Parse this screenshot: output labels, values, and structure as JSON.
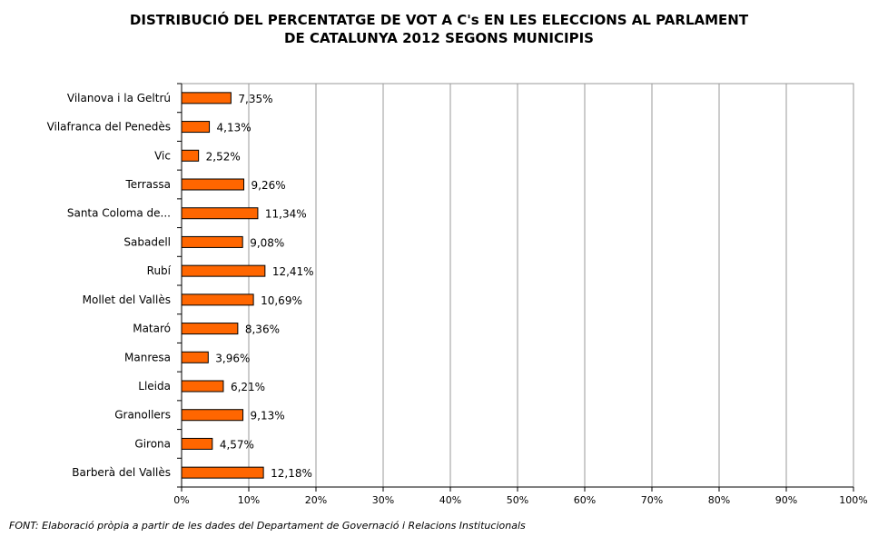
{
  "title_lines": [
    "DISTRIBUCIÓ DEL PERCENTATGE DE VOT A C's EN LES ELECCIONS AL PARLAMENT",
    "DE CATALUNYA 2012 SEGONS MUNICIPIS"
  ],
  "source": "FONT: Elaboració pròpia a partir de les dades del Departament de Governació i Relacions Institucionals",
  "colors": {
    "bar_fill": "#FF6600",
    "bar_stroke": "#000000",
    "grid": "#999999"
  },
  "chart_data": {
    "type": "bar",
    "orientation": "horizontal",
    "title": "DISTRIBUCIÓ DEL PERCENTATGE DE VOT A C's EN LES ELECCIONS AL PARLAMENT DE CATALUNYA 2012 SEGONS MUNICIPIS",
    "categories": [
      "Vilanova i la Geltrú",
      "Vilafranca del Penedès",
      "Vic",
      "Terrassa",
      "Santa Coloma de...",
      "Sabadell",
      "Rubí",
      "Mollet del Vallès",
      "Mataró",
      "Manresa",
      "Lleida",
      "Granollers",
      "Girona",
      "Barberà del Vallès"
    ],
    "values": [
      7.35,
      4.13,
      2.52,
      9.26,
      11.34,
      9.08,
      12.41,
      10.69,
      8.36,
      3.96,
      6.21,
      9.13,
      4.57,
      12.18
    ],
    "data_labels": [
      "7,35%",
      "4,13%",
      "2,52%",
      "9,26%",
      "11,34%",
      "9,08%",
      "12,41%",
      "10,69%",
      "8,36%",
      "3,96%",
      "6,21%",
      "9,13%",
      "4,57%",
      "12,18%"
    ],
    "x_ticks": [
      "0%",
      "10%",
      "20%",
      "30%",
      "40%",
      "50%",
      "60%",
      "70%",
      "80%",
      "90%",
      "100%"
    ],
    "xlim": [
      0,
      100
    ],
    "grid": true,
    "legend": false
  }
}
